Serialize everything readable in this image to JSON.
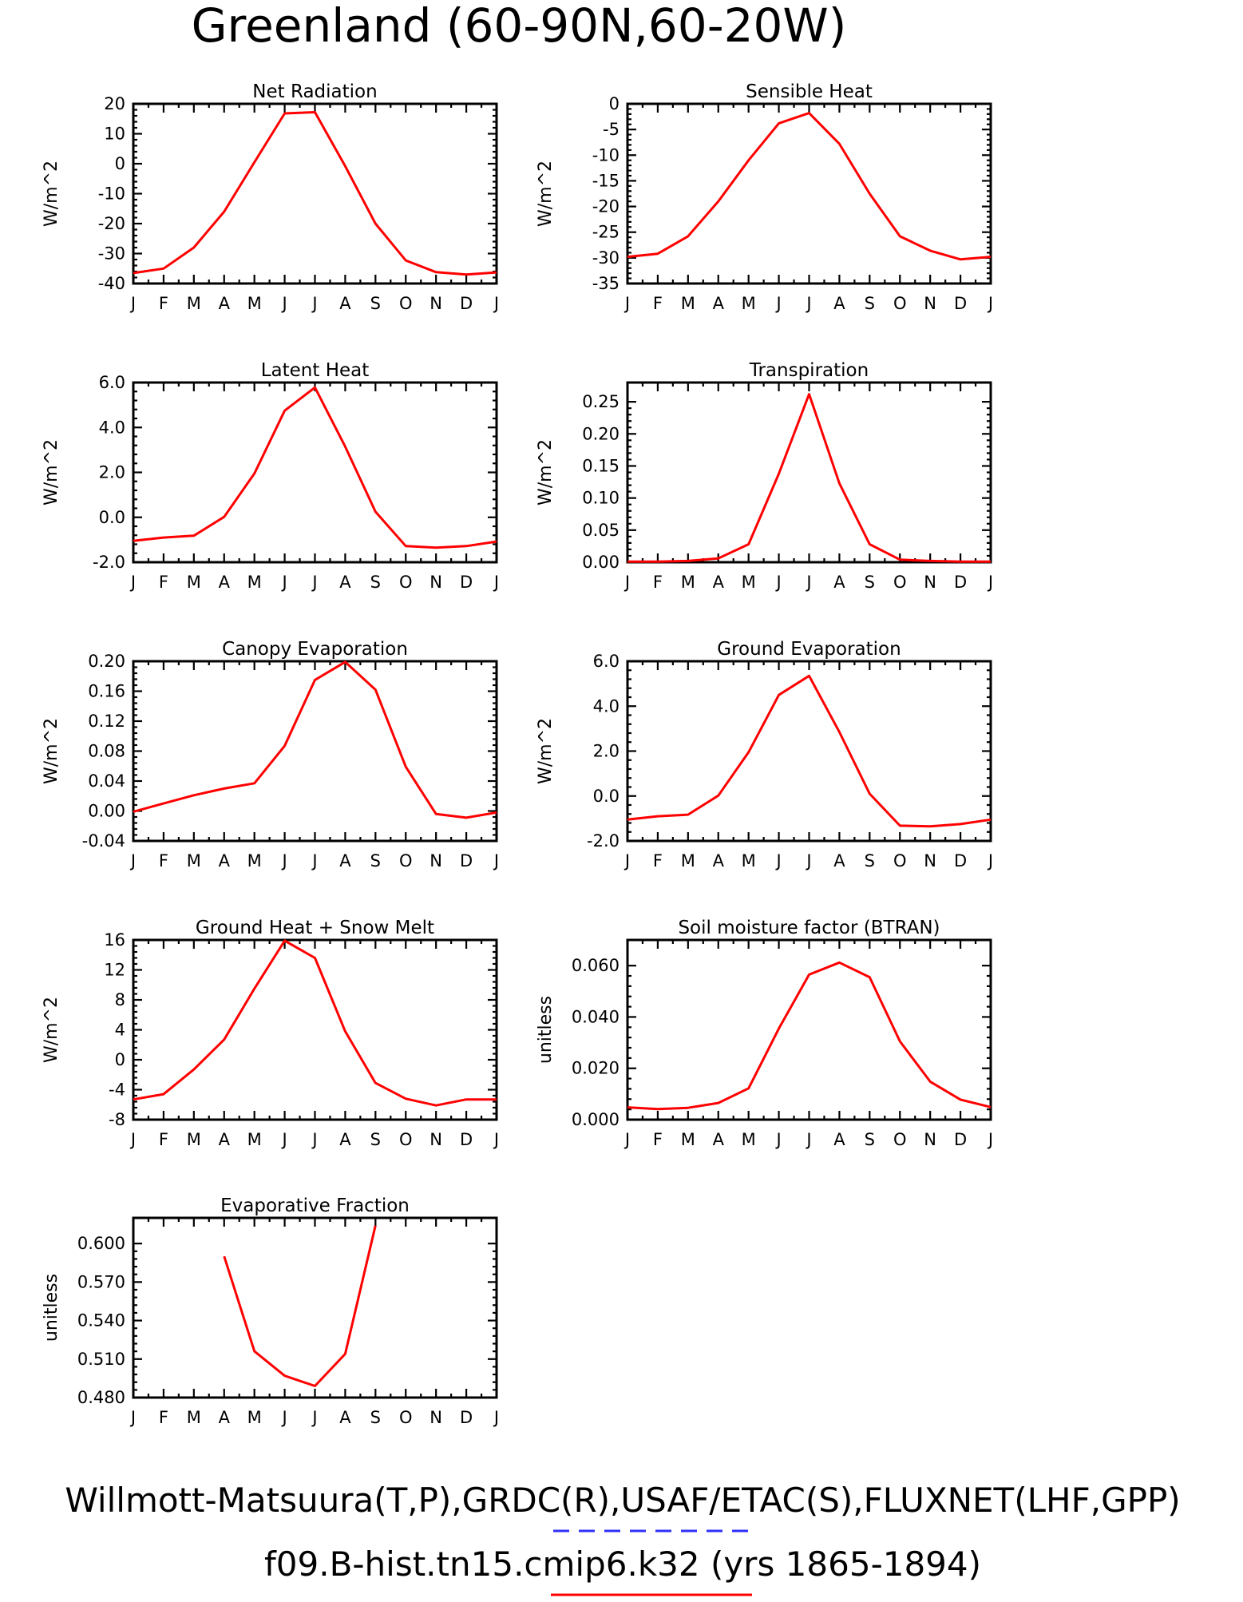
{
  "header": {
    "title": "Greenland (60-90N,60-20W)"
  },
  "footer": {
    "line1": "Willmott-Matsuura(T,P),GRDC(R),USAF/ETAC(S),FLUXNET(LHF,GPP)",
    "line2": "f09.B-hist.tn15.cmip6.k32 (yrs 1865-1894)",
    "dash_color": "#3030ff",
    "line_color": "#ff0000"
  },
  "chart_data": [
    {
      "type": "line",
      "title": "Net Radiation",
      "ylabel": "W/m^2",
      "categories": [
        "J",
        "F",
        "M",
        "A",
        "M",
        "J",
        "J",
        "A",
        "S",
        "O",
        "N",
        "D",
        "J"
      ],
      "ylim": [
        -40,
        20
      ],
      "yticks": [
        -40,
        -30,
        -20,
        -10,
        0,
        10,
        20
      ],
      "yticklabels": [
        "-40",
        "-30",
        "-20",
        "-10",
        "0",
        "10",
        "20"
      ],
      "values": [
        -36.5,
        -35,
        -28,
        -16,
        0.5,
        16.8,
        17.2,
        -0.8,
        -20,
        -32.3,
        -36.2,
        -37,
        -36.3
      ],
      "color": "#ff0000"
    },
    {
      "type": "line",
      "title": "Sensible Heat",
      "ylabel": "W/m^2",
      "categories": [
        "J",
        "F",
        "M",
        "A",
        "M",
        "J",
        "J",
        "A",
        "S",
        "O",
        "N",
        "D",
        "J"
      ],
      "ylim": [
        -35,
        0
      ],
      "yticks": [
        -35,
        -30,
        -25,
        -20,
        -15,
        -10,
        -5,
        0
      ],
      "yticklabels": [
        "-35",
        "-30",
        "-25",
        "-20",
        "-15",
        "-10",
        "-5",
        "0"
      ],
      "values": [
        -29.8,
        -29.2,
        -25.8,
        -19,
        -11,
        -3.8,
        -1.8,
        -7.8,
        -17.5,
        -25.8,
        -28.6,
        -30.3,
        -29.8
      ],
      "color": "#ff0000"
    },
    {
      "type": "line",
      "title": "Latent Heat",
      "ylabel": "W/m^2",
      "categories": [
        "J",
        "F",
        "M",
        "A",
        "M",
        "J",
        "J",
        "A",
        "S",
        "O",
        "N",
        "D",
        "J"
      ],
      "ylim": [
        -2.0,
        6.0
      ],
      "yticks": [
        -2,
        0,
        2,
        4,
        6
      ],
      "yticklabels": [
        "-2.0",
        "0.0",
        "2.0",
        "4.0",
        "6.0"
      ],
      "values": [
        -1.05,
        -0.9,
        -0.82,
        0.02,
        1.95,
        4.75,
        5.78,
        3.15,
        0.25,
        -1.28,
        -1.35,
        -1.28,
        -1.08
      ],
      "color": "#ff0000"
    },
    {
      "type": "line",
      "title": "Transpiration",
      "ylabel": "W/m^2",
      "categories": [
        "J",
        "F",
        "M",
        "A",
        "M",
        "J",
        "J",
        "A",
        "S",
        "O",
        "N",
        "D",
        "J"
      ],
      "ylim": [
        0,
        0.28
      ],
      "yticks": [
        0,
        0.05,
        0.1,
        0.15,
        0.2,
        0.25
      ],
      "yticklabels": [
        "0.00",
        "0.05",
        "0.10",
        "0.15",
        "0.20",
        "0.25"
      ],
      "values": [
        0.001,
        0.001,
        0.002,
        0.006,
        0.028,
        0.138,
        0.262,
        0.123,
        0.028,
        0.004,
        0.002,
        0.001,
        0.001
      ],
      "color": "#ff0000"
    },
    {
      "type": "line",
      "title": "Canopy Evaporation",
      "ylabel": "W/m^2",
      "categories": [
        "J",
        "F",
        "M",
        "A",
        "M",
        "J",
        "J",
        "A",
        "S",
        "O",
        "N",
        "D",
        "J"
      ],
      "ylim": [
        -0.04,
        0.2
      ],
      "yticks": [
        -0.04,
        0,
        0.04,
        0.08,
        0.12,
        0.16,
        0.2
      ],
      "yticklabels": [
        "-0.04",
        "0.00",
        "0.04",
        "0.08",
        "0.12",
        "0.16",
        "0.20"
      ],
      "values": [
        -0.001,
        0.01,
        0.021,
        0.03,
        0.037,
        0.087,
        0.175,
        0.199,
        0.162,
        0.059,
        -0.004,
        -0.009,
        -0.002
      ],
      "color": "#ff0000"
    },
    {
      "type": "line",
      "title": "Ground Evaporation",
      "ylabel": "W/m^2",
      "categories": [
        "J",
        "F",
        "M",
        "A",
        "M",
        "J",
        "J",
        "A",
        "S",
        "O",
        "N",
        "D",
        "J"
      ],
      "ylim": [
        -2.0,
        6.0
      ],
      "yticks": [
        -2,
        0,
        2,
        4,
        6
      ],
      "yticklabels": [
        "-2.0",
        "0.0",
        "2.0",
        "4.0",
        "6.0"
      ],
      "values": [
        -1.05,
        -0.9,
        -0.83,
        0.02,
        1.95,
        4.5,
        5.35,
        2.85,
        0.1,
        -1.32,
        -1.35,
        -1.25,
        -1.05
      ],
      "color": "#ff0000"
    },
    {
      "type": "line",
      "title": "Ground Heat + Snow Melt",
      "ylabel": "W/m^2",
      "categories": [
        "J",
        "F",
        "M",
        "A",
        "M",
        "J",
        "J",
        "A",
        "S",
        "O",
        "N",
        "D",
        "J"
      ],
      "ylim": [
        -8,
        16
      ],
      "yticks": [
        -8,
        -4,
        0,
        4,
        8,
        12,
        16
      ],
      "yticklabels": [
        "-8",
        "-4",
        "0",
        "4",
        "8",
        "12",
        "16"
      ],
      "values": [
        -5.3,
        -4.6,
        -1.3,
        2.7,
        9.5,
        15.9,
        13.6,
        3.8,
        -3.1,
        -5.2,
        -6.1,
        -5.3,
        -5.3
      ],
      "color": "#ff0000"
    },
    {
      "type": "line",
      "title": "Soil moisture factor (BTRAN)",
      "ylabel": "unitless",
      "categories": [
        "J",
        "F",
        "M",
        "A",
        "M",
        "J",
        "J",
        "A",
        "S",
        "O",
        "N",
        "D",
        "J"
      ],
      "ylim": [
        0,
        0.07
      ],
      "yticks": [
        0,
        0.02,
        0.04,
        0.06
      ],
      "yticklabels": [
        "0.000",
        "0.020",
        "0.040",
        "0.060"
      ],
      "values": [
        0.0048,
        0.0041,
        0.0046,
        0.0065,
        0.0122,
        0.0355,
        0.0565,
        0.0612,
        0.0555,
        0.0305,
        0.0148,
        0.0078,
        0.0049
      ],
      "color": "#ff0000"
    },
    {
      "type": "line",
      "title": "Evaporative Fraction",
      "ylabel": "unitless",
      "categories": [
        "J",
        "F",
        "M",
        "A",
        "M",
        "J",
        "J",
        "A",
        "S",
        "O",
        "N",
        "D",
        "J"
      ],
      "ylim": [
        0.48,
        0.62
      ],
      "yticks": [
        0.48,
        0.51,
        0.54,
        0.57,
        0.6
      ],
      "yticklabels": [
        "0.480",
        "0.510",
        "0.540",
        "0.570",
        "0.600"
      ],
      "values": [
        null,
        null,
        null,
        0.59,
        0.516,
        0.497,
        0.489,
        0.514,
        0.614,
        null,
        null,
        null,
        null
      ],
      "color": "#ff0000"
    }
  ]
}
